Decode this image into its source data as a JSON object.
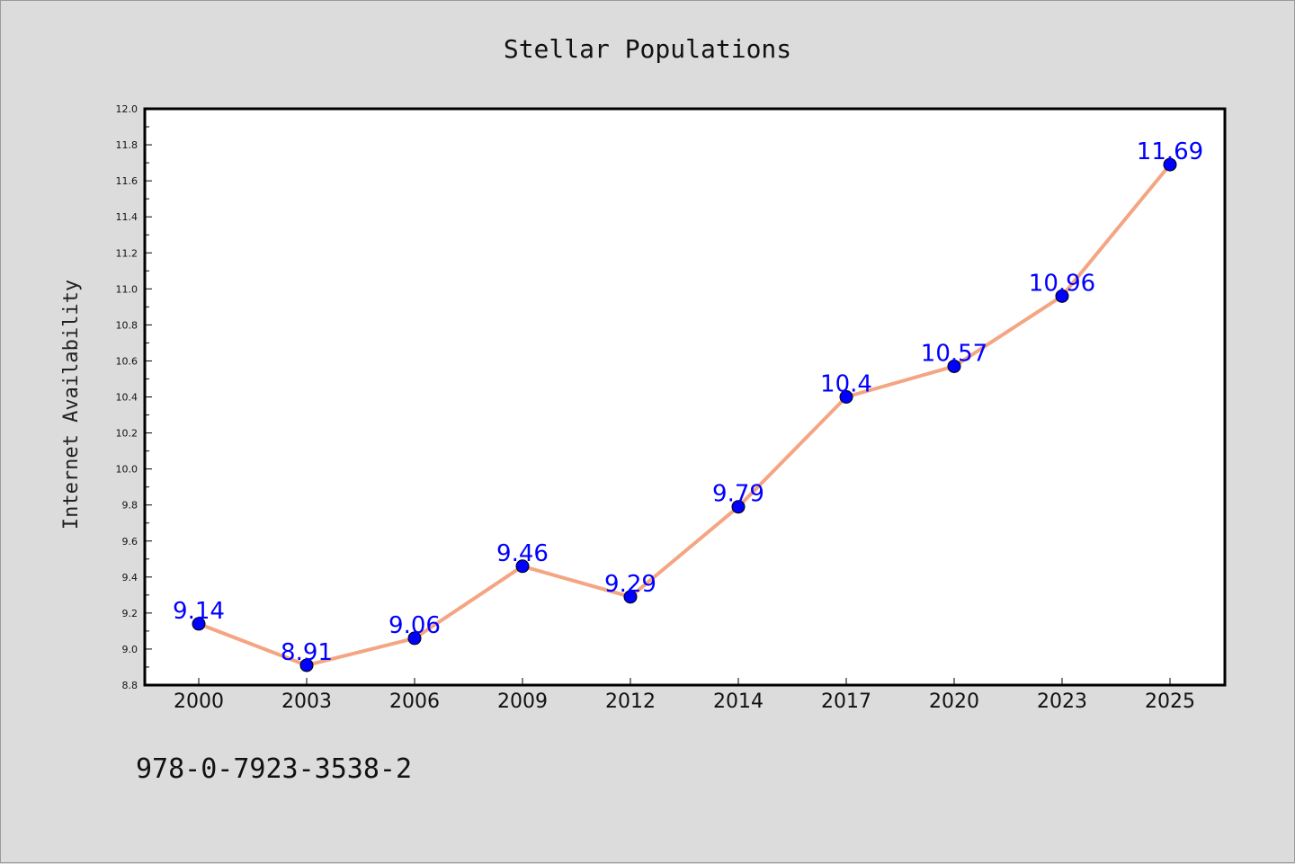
{
  "chart_data": {
    "type": "line",
    "title": "Stellar Populations",
    "xlabel": "",
    "ylabel": "Internet Availability",
    "categories": [
      "2000",
      "2003",
      "2006",
      "2009",
      "2012",
      "2014",
      "2017",
      "2020",
      "2023",
      "2025"
    ],
    "series": [
      {
        "values": [
          9.14,
          8.91,
          9.06,
          9.46,
          9.29,
          9.79,
          10.4,
          10.57,
          10.96,
          11.69
        ],
        "line_color": "#f4a582",
        "marker_color": "#0000ff"
      }
    ],
    "data_labels": [
      "9.14",
      "8.91",
      "9.06",
      "9.46",
      "9.29",
      "9.79",
      "10.4",
      "10.57",
      "10.96",
      "11.69"
    ],
    "ylim": [
      8.8,
      12.0
    ],
    "yticks": [
      "8.8",
      "9.0",
      "9.2",
      "9.4",
      "9.6",
      "9.8",
      "10.0",
      "10.2",
      "10.4",
      "10.6",
      "10.8",
      "11.0",
      "11.2",
      "11.4",
      "11.6",
      "11.8",
      "12.0"
    ],
    "grid": false,
    "legend": "none"
  },
  "footer_text": "978-0-7923-3538-2",
  "colors": {
    "background": "#dcdcdc",
    "plot_background": "#ffffff",
    "line": "#f4a582",
    "marker": "#0000ff",
    "data_label": "#0000ff"
  }
}
